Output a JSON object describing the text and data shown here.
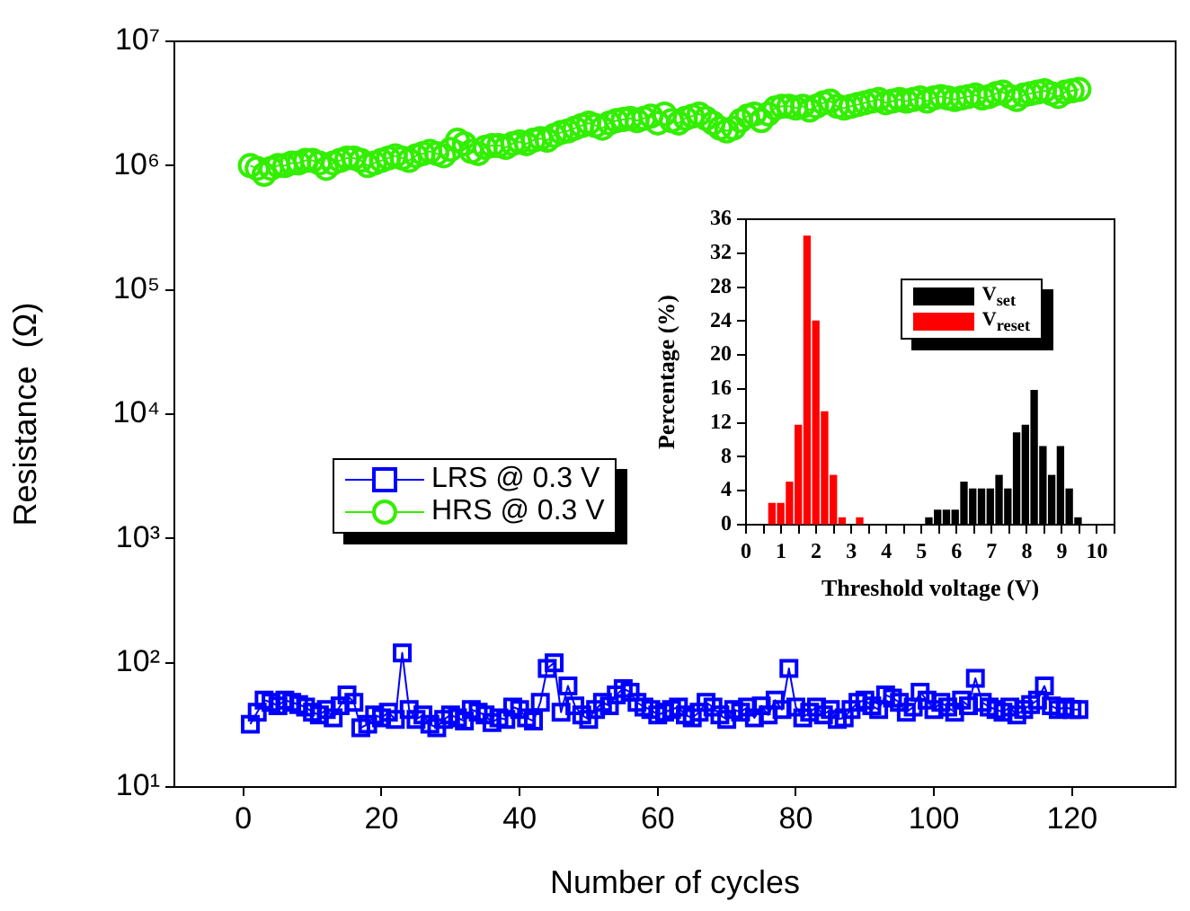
{
  "chart_data": [
    {
      "type": "line",
      "xlabel": "Number of cycles",
      "ylabel": "Resistance  (Ω)",
      "log": true,
      "grid": false,
      "legend": "left",
      "xlim": [
        -10,
        135
      ],
      "xticks": [
        0,
        20,
        40,
        60,
        80,
        100,
        120
      ],
      "ylim": [
        10,
        10000000
      ],
      "yticks": [
        {
          "value": 10,
          "label": "10¹"
        },
        {
          "value": 100,
          "label": "10²"
        },
        {
          "value": 1000,
          "label": "10³"
        },
        {
          "value": 10000,
          "label": "10⁴"
        },
        {
          "value": 100000,
          "label": "10⁵"
        },
        {
          "value": 1000000,
          "label": "10⁶"
        },
        {
          "value": 10000000,
          "label": "10⁷"
        }
      ],
      "x": [
        1,
        2,
        3,
        4,
        5,
        6,
        7,
        8,
        9,
        10,
        11,
        12,
        13,
        14,
        15,
        16,
        17,
        18,
        19,
        20,
        21,
        22,
        23,
        24,
        25,
        26,
        27,
        28,
        29,
        30,
        31,
        32,
        33,
        34,
        35,
        36,
        37,
        38,
        39,
        40,
        41,
        42,
        43,
        44,
        45,
        46,
        47,
        48,
        49,
        50,
        51,
        52,
        53,
        54,
        55,
        56,
        57,
        58,
        59,
        60,
        61,
        62,
        63,
        64,
        65,
        66,
        67,
        68,
        69,
        70,
        71,
        72,
        73,
        74,
        75,
        76,
        77,
        78,
        79,
        80,
        81,
        82,
        83,
        84,
        85,
        86,
        87,
        88,
        89,
        90,
        91,
        92,
        93,
        94,
        95,
        96,
        97,
        98,
        99,
        100,
        101,
        102,
        103,
        104,
        105,
        106,
        107,
        108,
        109,
        110,
        111,
        112,
        113,
        114,
        115,
        116,
        117,
        118,
        119,
        120,
        121
      ],
      "series": [
        {
          "name": "LRS @ 0.3 V",
          "color": "#0000ff",
          "marker": "square",
          "values": [
            32,
            40,
            50,
            48,
            45,
            50,
            48,
            46,
            44,
            40,
            38,
            42,
            36,
            45,
            55,
            48,
            30,
            32,
            38,
            36,
            40,
            35,
            120,
            42,
            35,
            38,
            32,
            30,
            35,
            38,
            36,
            34,
            42,
            40,
            38,
            33,
            36,
            35,
            44,
            42,
            36,
            34,
            48,
            90,
            100,
            40,
            65,
            45,
            38,
            35,
            42,
            48,
            45,
            55,
            62,
            58,
            48,
            44,
            42,
            38,
            40,
            42,
            44,
            38,
            36,
            40,
            48,
            44,
            38,
            35,
            42,
            40,
            44,
            36,
            45,
            38,
            50,
            42,
            90,
            44,
            36,
            40,
            44,
            38,
            42,
            35,
            36,
            42,
            48,
            50,
            45,
            42,
            55,
            52,
            48,
            40,
            44,
            58,
            50,
            42,
            48,
            44,
            40,
            50,
            45,
            75,
            48,
            44,
            42,
            40,
            44,
            38,
            42,
            46,
            50,
            65,
            45,
            42,
            44,
            42,
            42
          ]
        },
        {
          "name": "HRS @ 0.3 V",
          "color": "#33ee00",
          "marker": "circle",
          "values": [
            1000000,
            950000,
            850000,
            950000,
            1000000,
            1000000,
            1050000,
            1050000,
            1100000,
            1100000,
            1050000,
            950000,
            1050000,
            1100000,
            1150000,
            1150000,
            1100000,
            1000000,
            1050000,
            1100000,
            1150000,
            1200000,
            1150000,
            1100000,
            1200000,
            1250000,
            1300000,
            1250000,
            1200000,
            1350000,
            1600000,
            1500000,
            1300000,
            1250000,
            1400000,
            1450000,
            1450000,
            1400000,
            1500000,
            1550000,
            1500000,
            1600000,
            1650000,
            1600000,
            1750000,
            1850000,
            1900000,
            2000000,
            2100000,
            2200000,
            2100000,
            2000000,
            2200000,
            2300000,
            2350000,
            2400000,
            2300000,
            2400000,
            2500000,
            2200000,
            2600000,
            2300000,
            2200000,
            2400000,
            2500000,
            2600000,
            2400000,
            2200000,
            2000000,
            1900000,
            2000000,
            2300000,
            2500000,
            2600000,
            2300000,
            2600000,
            2900000,
            3000000,
            3000000,
            2900000,
            3000000,
            2800000,
            3000000,
            3200000,
            3300000,
            3000000,
            2900000,
            3000000,
            3100000,
            3200000,
            3300000,
            3400000,
            3200000,
            3300000,
            3400000,
            3300000,
            3400000,
            3500000,
            3300000,
            3500000,
            3600000,
            3500000,
            3400000,
            3500000,
            3600000,
            3700000,
            3500000,
            3600000,
            3800000,
            3900000,
            3600000,
            3400000,
            3700000,
            3800000,
            3900000,
            4000000,
            3800000,
            3600000,
            3900000,
            4000000,
            4100000
          ]
        }
      ]
    },
    {
      "type": "bar",
      "xlabel": "Threshold voltage (V)",
      "ylabel": "Percentage (%)",
      "grid": false,
      "legend": "top right",
      "xlim": [
        0,
        10.5
      ],
      "xticks": [
        0,
        {
          "value": 0.5,
          "label": null
        },
        1,
        {
          "value": 1.5,
          "label": null
        },
        2,
        {
          "value": 2.5,
          "label": null
        },
        3,
        {
          "value": 3.5,
          "label": null
        },
        4,
        {
          "value": 4.5,
          "label": null
        },
        5,
        {
          "value": 5.5,
          "label": null
        },
        6,
        {
          "value": 6.5,
          "label": null
        },
        7,
        {
          "value": 7.5,
          "label": null
        },
        8,
        {
          "value": 8.5,
          "label": null
        },
        9,
        {
          "value": 9.5,
          "label": null
        },
        10,
        {
          "value": 10.5,
          "label": null
        }
      ],
      "ylim": [
        0,
        36
      ],
      "yticks": [
        0,
        4,
        8,
        12,
        16,
        20,
        24,
        28,
        32,
        36
      ],
      "series": [
        {
          "name": "V$_{set}$",
          "color": "#000000",
          "x": [
            5.3,
            5.55,
            5.8,
            6.05,
            6.3,
            6.55,
            6.8,
            7.05,
            7.3,
            7.55,
            7.8,
            8.05,
            8.3,
            8.55,
            8.8,
            9.05,
            9.3,
            9.55
          ],
          "values": [
            0.8,
            1.7,
            1.7,
            1.7,
            5,
            4.2,
            4.2,
            4.2,
            5.8,
            4.2,
            10.8,
            11.7,
            15.8,
            9.2,
            5.8,
            9.2,
            4.2,
            0.8
          ]
        },
        {
          "name": "V$_{reset}$",
          "color": "#ff0000",
          "x": [
            0.65,
            0.9,
            1.15,
            1.4,
            1.65,
            1.9,
            2.15,
            2.4,
            2.65,
            3.15
          ],
          "values": [
            2.5,
            2.5,
            5,
            11.7,
            34,
            24,
            13.3,
            5.8,
            0.8,
            0.8
          ]
        }
      ]
    }
  ]
}
